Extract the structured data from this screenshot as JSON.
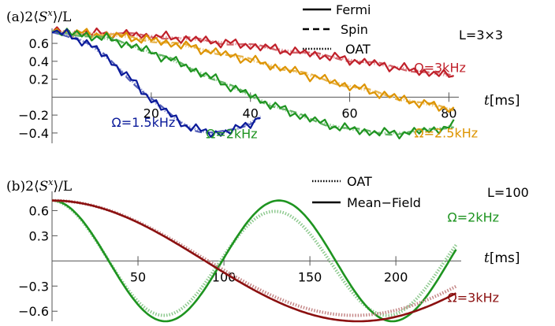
{
  "chart_data": [
    {
      "type": "line",
      "panel_label": "(a)",
      "ylabel": "2⟨S^x⟩/L",
      "ylabel_prefix": "2⟨",
      "ylabel_sym": "S",
      "ylabel_sup": "x",
      "ylabel_suffix": "⟩/L",
      "xlabel_sym": "t",
      "xlabel_unit": "[ms]",
      "system_label": "L=3×3",
      "legend": [
        "Fermi",
        "Spin",
        "OAT"
      ],
      "legend_styles": [
        "solid",
        "dashed",
        "dotted"
      ],
      "xlim": [
        0,
        82
      ],
      "ylim": [
        -0.48,
        0.75
      ],
      "xticks": [
        20,
        40,
        60,
        80
      ],
      "yticks": [
        -0.4,
        -0.2,
        0.2,
        0.4,
        0.6
      ],
      "grid": false,
      "series": [
        {
          "name": "Ω=3kHz",
          "color": "#c0202a",
          "amp": 0.72,
          "A": 0.42,
          "omega": 0.0215,
          "tmax": 81,
          "label_t": 73,
          "label_val": 0.28
        },
        {
          "name": "Ω=2.5kHz",
          "color": "#dd9400",
          "amp": 0.72,
          "A": 0.495,
          "omega": 0.0296,
          "tmax": 81,
          "label_t": 73,
          "label_val": -0.45
        },
        {
          "name": "Ω=2kHz",
          "color": "#1e9420",
          "amp": 0.72,
          "A": 0.56,
          "omega": 0.0457,
          "tmax": 81,
          "label_t": 31,
          "label_val": -0.46
        },
        {
          "name": "Ω=1.5kHz",
          "color": "#0a1a9a",
          "amp": 0.72,
          "A": 0.56,
          "omega": 0.095,
          "tmax": 42,
          "label_t": 12,
          "label_val": -0.33
        }
      ]
    },
    {
      "type": "line",
      "panel_label": "(b)",
      "ylabel": "2⟨S^x⟩/L",
      "ylabel_prefix": "2⟨",
      "ylabel_sym": "S",
      "ylabel_sup": "x",
      "ylabel_suffix": "⟩/L",
      "xlabel_sym": "t",
      "xlabel_unit": "[ms]",
      "system_label": "L=100",
      "legend": [
        "OAT",
        "Mean−Field"
      ],
      "legend_styles": [
        "dotted",
        "solid"
      ],
      "xlim": [
        0,
        238
      ],
      "ylim": [
        -0.72,
        0.82
      ],
      "xticks": [
        50,
        100,
        150,
        200
      ],
      "yticks": [
        -0.6,
        -0.3,
        0.3,
        0.6
      ],
      "grid": false,
      "series": [
        {
          "name": "Ω=2kHz",
          "color": "#1e9420",
          "mf_period": 132,
          "oat_period": 130,
          "oat_min": -0.65,
          "oat_max": 0.59,
          "label_t": 230,
          "label_val": 0.47
        },
        {
          "name": "Ω=3kHz",
          "color": "#8b1010",
          "mf_period": 356,
          "oat_period": 352,
          "oat_min": -0.65,
          "oat_max": 0.72,
          "label_t": 230,
          "label_val": -0.49
        }
      ]
    }
  ]
}
